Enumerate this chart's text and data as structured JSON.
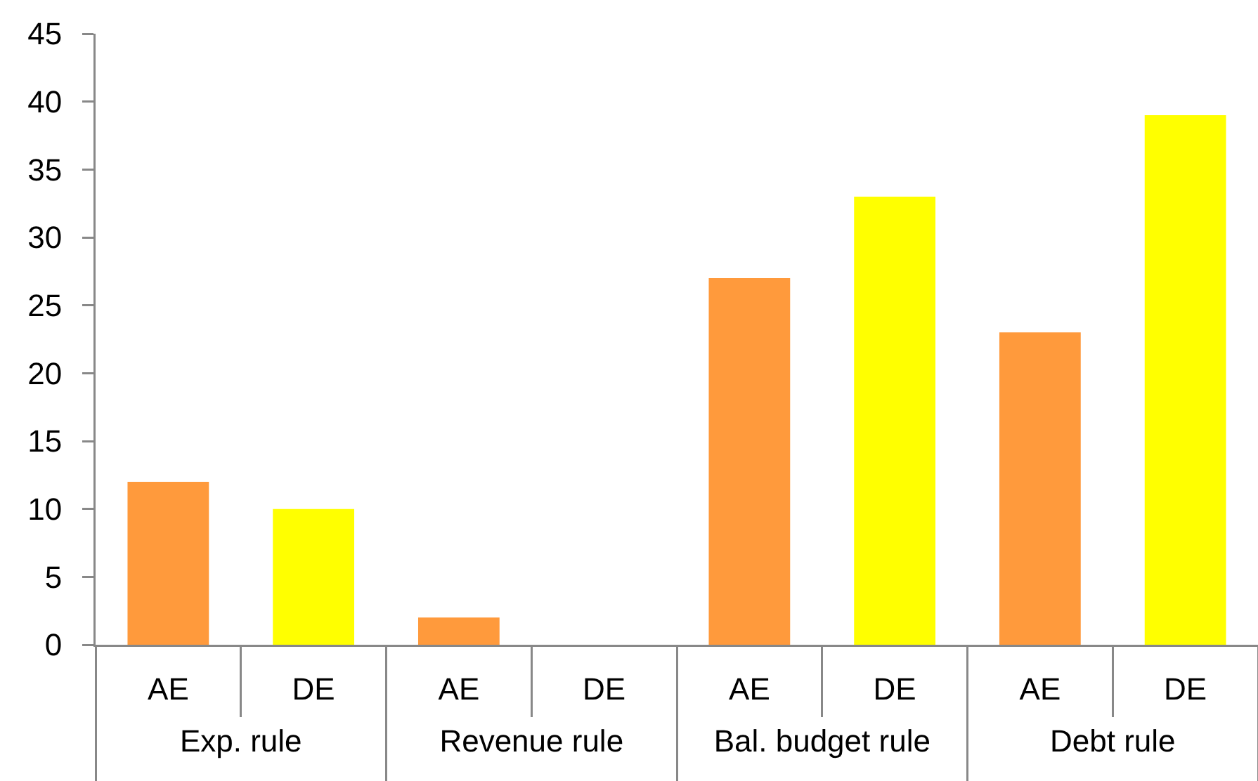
{
  "chart_data": {
    "type": "bar",
    "categories": [
      "Exp. rule",
      "Revenue rule",
      "Bal. budget rule",
      "Debt rule"
    ],
    "series": [
      {
        "name": "AE",
        "color": "#ff9a3c",
        "values": [
          12,
          2,
          27,
          23
        ]
      },
      {
        "name": "DE",
        "color": "#ffff00",
        "values": [
          10,
          0,
          33,
          39
        ]
      }
    ],
    "ylim": [
      0,
      45
    ],
    "yticks": [
      0,
      5,
      10,
      15,
      20,
      25,
      30,
      35,
      40,
      45
    ]
  }
}
